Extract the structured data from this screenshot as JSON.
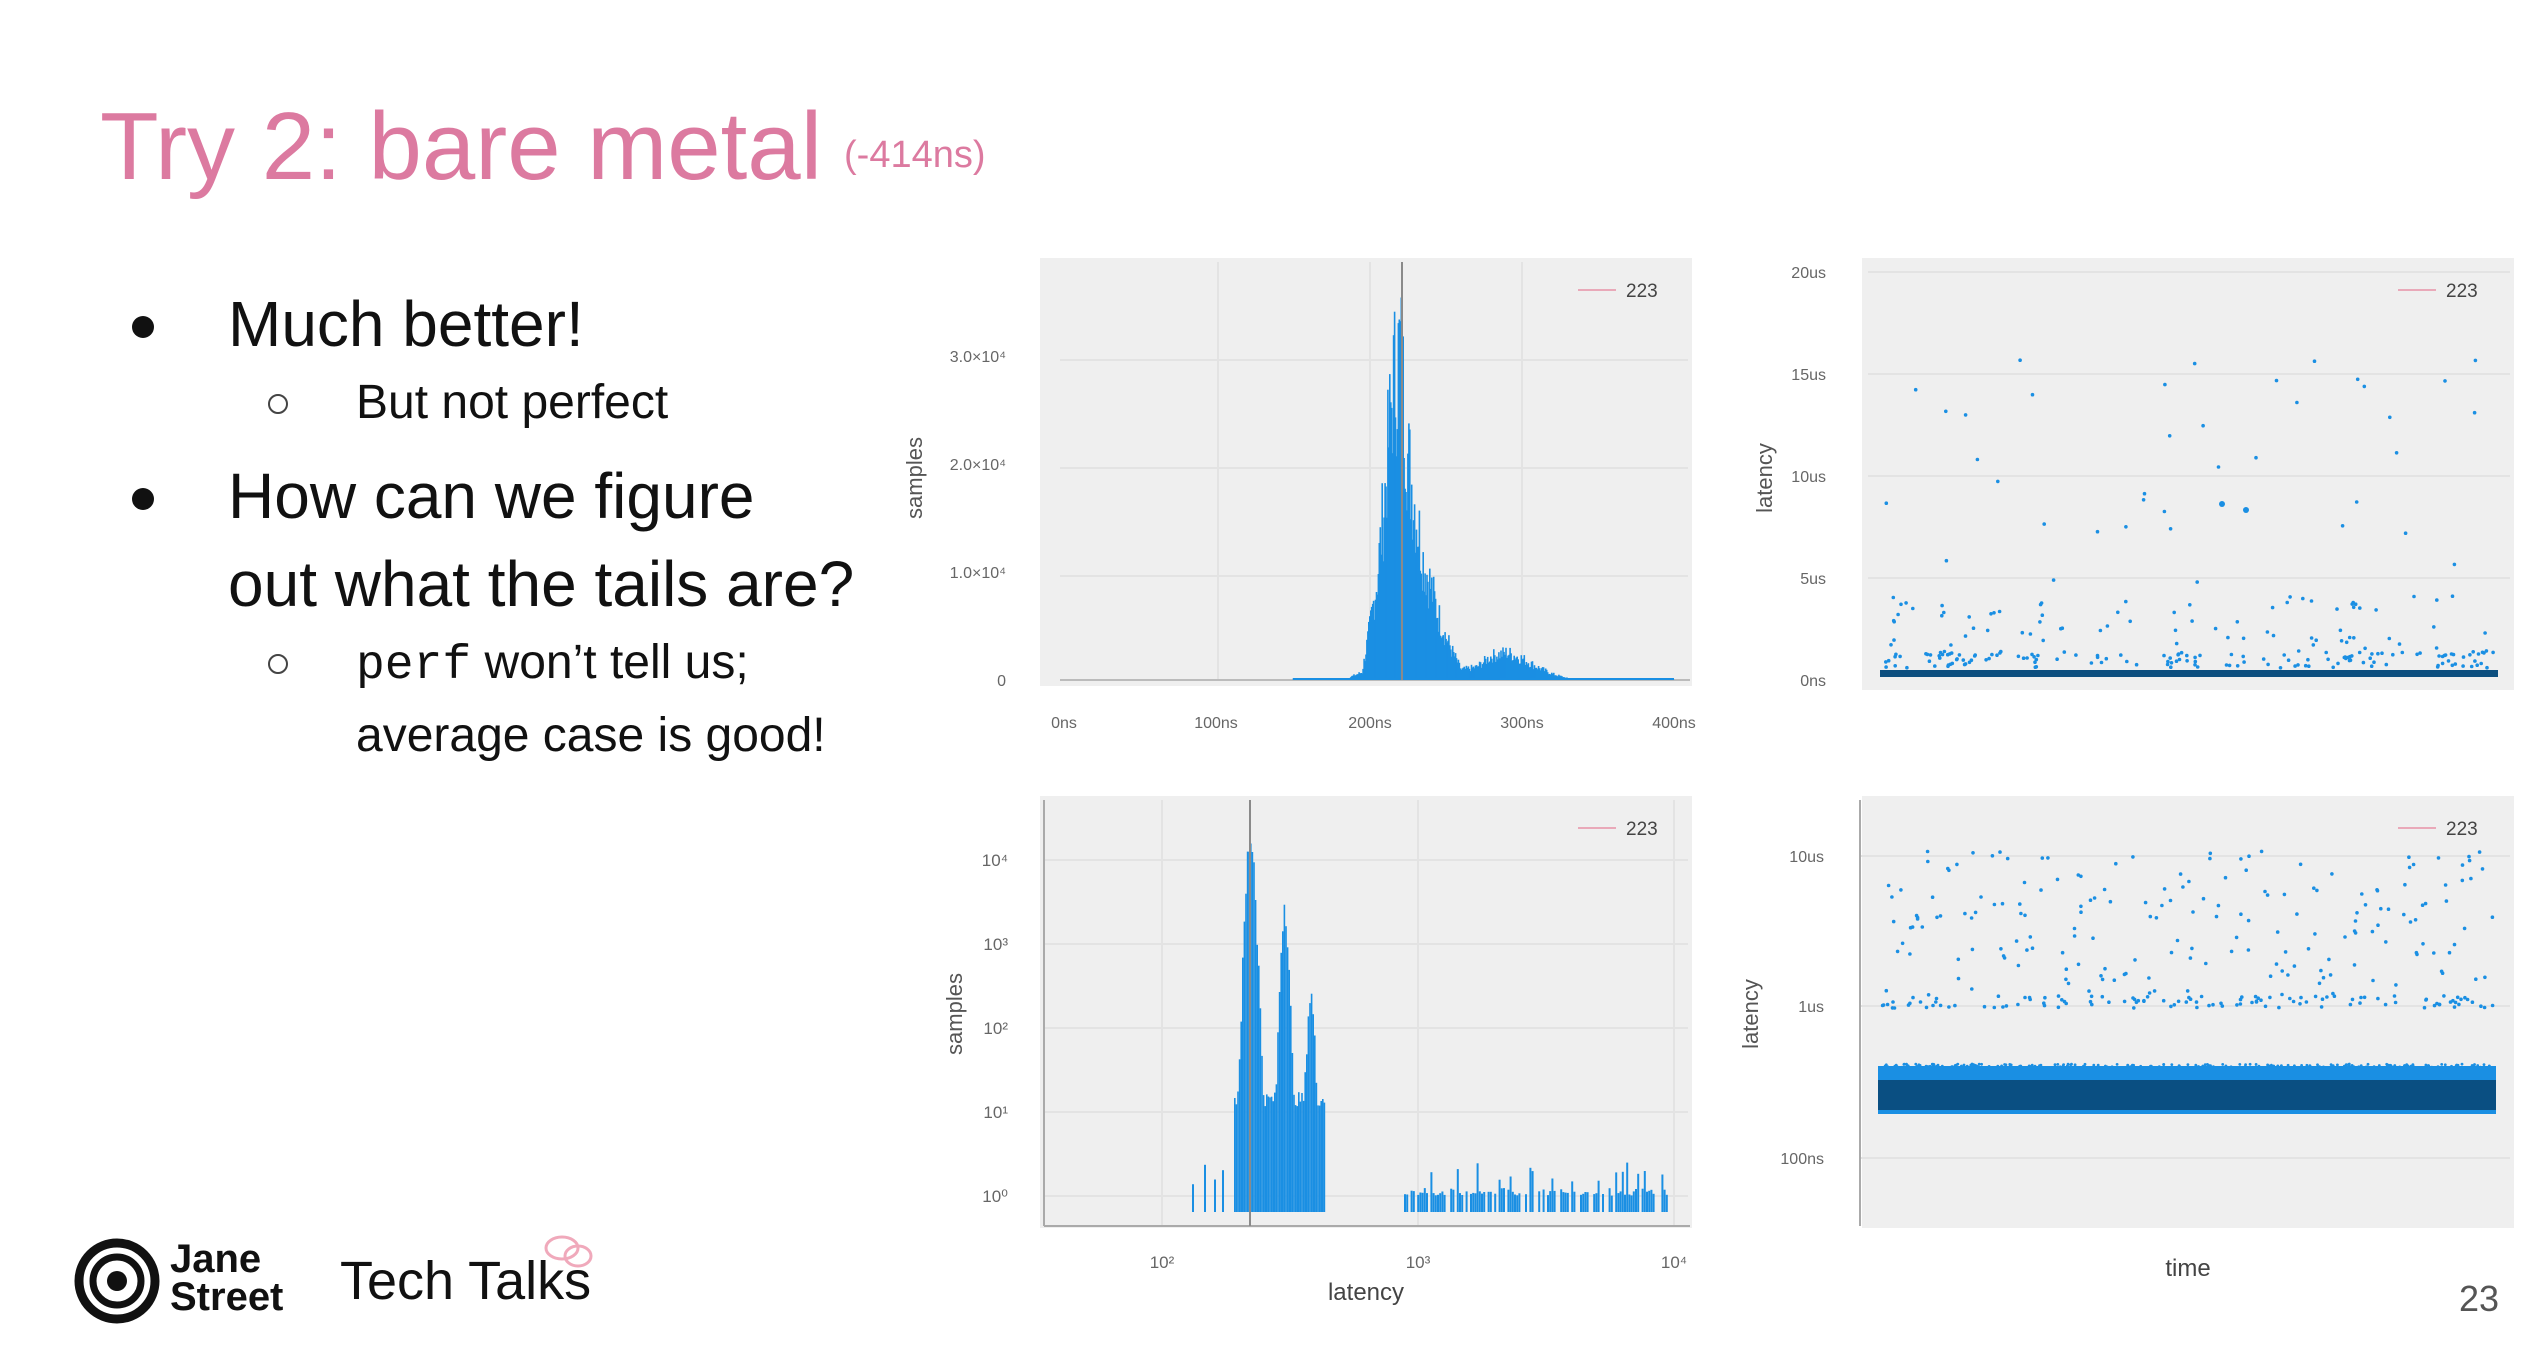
{
  "slide": {
    "title": "Try 2: bare metal",
    "subtitle": "(-414ns)",
    "page_number": "23"
  },
  "bullets": [
    {
      "text": "Much better!",
      "sub": "But not perfect"
    },
    {
      "text": "How can we figure",
      "text2": "out what the tails are?",
      "sub_code": "perf",
      "sub_rest": " won’t tell us;",
      "sub2": "average case is good!"
    }
  ],
  "footer": {
    "brand_line1": "Jane",
    "brand_line2": "Street",
    "tech_talks": "Tech Talks"
  },
  "colors": {
    "title": "#dc7aa0",
    "series": "#1a8fe3",
    "panel_bg": "#efefef"
  },
  "chart_data": [
    {
      "type": "bar",
      "ylabel": "samples",
      "xlabel": "",
      "legend": "223",
      "x_ticks": [
        "0ns",
        "100ns",
        "200ns",
        "300ns",
        "400ns"
      ],
      "y_ticks": [
        "0",
        "1.0×10⁴",
        "2.0×10⁴",
        "3.0×10⁴"
      ],
      "xlim": [
        0,
        400
      ],
      "ylim": [
        0,
        38000
      ],
      "x": [
        150,
        185,
        195,
        200,
        205,
        210,
        215,
        220,
        225,
        230,
        235,
        240,
        245,
        250,
        255,
        260,
        270,
        280,
        290,
        300,
        310,
        320,
        330,
        350,
        400
      ],
      "values": [
        50,
        200,
        900,
        6000,
        12000,
        22000,
        34000,
        38500,
        26000,
        20000,
        14000,
        11000,
        7500,
        5000,
        3000,
        1200,
        1500,
        2800,
        3200,
        2500,
        1500,
        700,
        200,
        50,
        20
      ]
    },
    {
      "type": "scatter",
      "ylabel": "latency",
      "legend": "223",
      "y_ticks": [
        "0ns",
        "5us",
        "10us",
        "15us",
        "20us"
      ],
      "ylim": [
        0,
        20000
      ]
    },
    {
      "type": "bar",
      "ylabel": "samples",
      "xlabel": "latency",
      "legend": "223",
      "scale": "log-log",
      "x_ticks": [
        "10²",
        "10³",
        "10⁴"
      ],
      "y_ticks": [
        "10⁰",
        "10¹",
        "10²",
        "10³",
        "10⁴"
      ]
    },
    {
      "type": "scatter",
      "ylabel": "latency",
      "xlabel": "time",
      "legend": "223",
      "scale": "log-y",
      "y_ticks": [
        "100ns",
        "1us",
        "10us"
      ]
    }
  ]
}
